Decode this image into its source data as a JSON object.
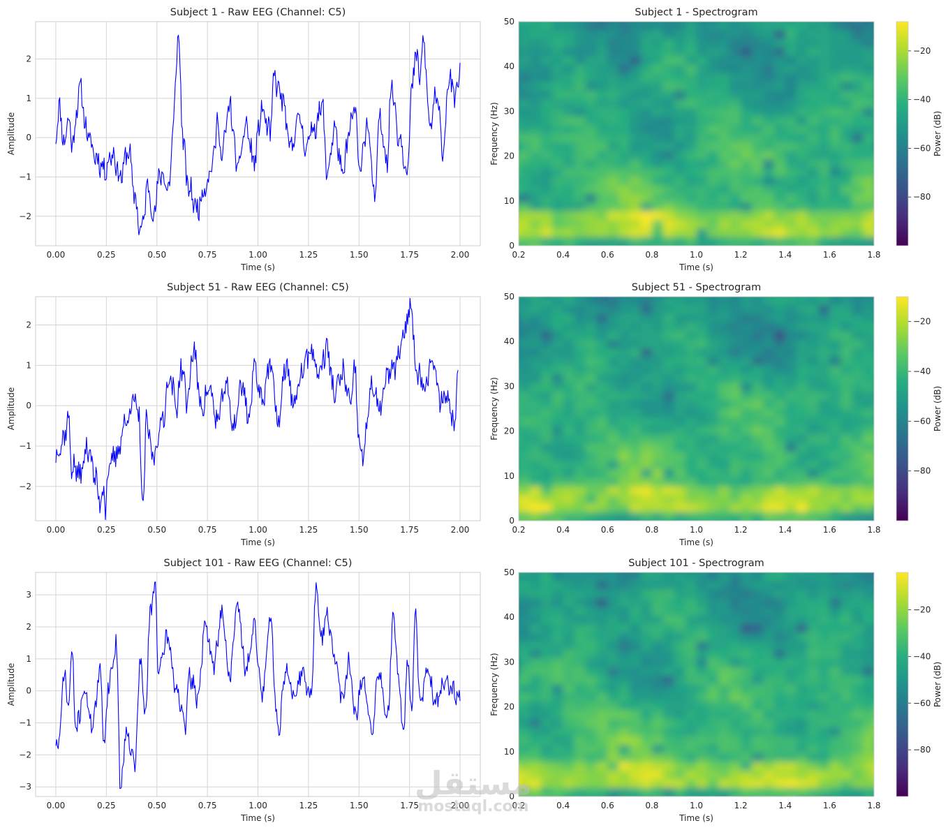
{
  "chart_data": [
    {
      "type": "line",
      "title": "Subject 1 - Raw EEG (Channel: C5)",
      "xlabel": "Time (s)",
      "ylabel": "Amplitude",
      "xlim": [
        -0.1,
        2.1
      ],
      "ylim": [
        -2.75,
        2.95
      ],
      "xticks": [
        0,
        0.25,
        0.5,
        0.75,
        1.0,
        1.25,
        1.5,
        1.75,
        2.0
      ],
      "xtick_labels": [
        "0.00",
        "0.25",
        "0.50",
        "0.75",
        "1.00",
        "1.25",
        "1.50",
        "1.75",
        "2.00"
      ],
      "yticks": [
        -2,
        -1,
        0,
        1,
        2
      ],
      "ytick_labels": [
        "−2",
        "−1",
        "0",
        "1",
        "2"
      ],
      "color": "#0000ff",
      "grid": true,
      "anchors": [
        [
          0.0,
          0.1
        ],
        [
          0.02,
          0.8
        ],
        [
          0.04,
          -0.2
        ],
        [
          0.06,
          0.5
        ],
        [
          0.08,
          -0.1
        ],
        [
          0.12,
          1.2
        ],
        [
          0.16,
          0.0
        ],
        [
          0.2,
          -0.5
        ],
        [
          0.24,
          -0.8
        ],
        [
          0.28,
          -0.4
        ],
        [
          0.32,
          -1.0
        ],
        [
          0.36,
          -0.3
        ],
        [
          0.39,
          -1.5
        ],
        [
          0.42,
          -2.4
        ],
        [
          0.46,
          -1.2
        ],
        [
          0.48,
          -2.0
        ],
        [
          0.52,
          -0.9
        ],
        [
          0.56,
          -1.3
        ],
        [
          0.58,
          0.2
        ],
        [
          0.605,
          2.6
        ],
        [
          0.63,
          0.0
        ],
        [
          0.65,
          -1.2
        ],
        [
          0.7,
          -1.8
        ],
        [
          0.74,
          -1.2
        ],
        [
          0.78,
          -0.6
        ],
        [
          0.8,
          0.5
        ],
        [
          0.82,
          -0.5
        ],
        [
          0.86,
          0.8
        ],
        [
          0.9,
          -0.8
        ],
        [
          0.94,
          0.3
        ],
        [
          0.98,
          -0.6
        ],
        [
          1.02,
          0.7
        ],
        [
          1.06,
          0.1
        ],
        [
          1.08,
          1.5
        ],
        [
          1.12,
          1.0
        ],
        [
          1.16,
          -0.3
        ],
        [
          1.2,
          0.5
        ],
        [
          1.24,
          -0.2
        ],
        [
          1.28,
          0.3
        ],
        [
          1.32,
          0.8
        ],
        [
          1.34,
          -0.9
        ],
        [
          1.38,
          0.2
        ],
        [
          1.42,
          -1.0
        ],
        [
          1.45,
          0.1
        ],
        [
          1.48,
          0.8
        ],
        [
          1.5,
          -0.8
        ],
        [
          1.54,
          0.3
        ],
        [
          1.58,
          -1.6
        ],
        [
          1.6,
          0.5
        ],
        [
          1.64,
          -0.5
        ],
        [
          1.66,
          1.3
        ],
        [
          1.7,
          0.0
        ],
        [
          1.74,
          -0.8
        ],
        [
          1.76,
          1.1
        ],
        [
          1.78,
          2.1
        ],
        [
          1.8,
          1.6
        ],
        [
          1.82,
          2.4
        ],
        [
          1.85,
          0.3
        ],
        [
          1.88,
          1.0
        ],
        [
          1.92,
          -0.3
        ],
        [
          1.94,
          1.5
        ],
        [
          1.98,
          1.0
        ],
        [
          2.0,
          1.9
        ]
      ],
      "seed": 11
    },
    {
      "type": "heatmap",
      "title": "Subject 1 - Spectrogram",
      "xlabel": "Time (s)",
      "ylabel": "Frequency (Hz)",
      "xlim": [
        0.2,
        1.8
      ],
      "ylim": [
        0,
        50
      ],
      "xticks": [
        0.2,
        0.4,
        0.6,
        0.8,
        1.0,
        1.2,
        1.4,
        1.6,
        1.8
      ],
      "xtick_labels": [
        "0.2",
        "0.4",
        "0.6",
        "0.8",
        "1.0",
        "1.2",
        "1.4",
        "1.6",
        "1.8"
      ],
      "yticks": [
        0,
        10,
        20,
        30,
        40,
        50
      ],
      "ytick_labels": [
        "0",
        "10",
        "20",
        "30",
        "40",
        "50"
      ],
      "colorbar_label": "Power (dB)",
      "colorbar_range": [
        -100,
        -8
      ],
      "colorbar_ticks": [
        -20,
        -40,
        -60,
        -80
      ],
      "colorbar_tick_labels": [
        "−20",
        "−40",
        "−60",
        "−80"
      ],
      "colormap": "viridis",
      "seed": 21
    },
    {
      "type": "line",
      "title": "Subject 51 - Raw EEG (Channel: C5)",
      "xlabel": "Time (s)",
      "ylabel": "Amplitude",
      "xlim": [
        -0.1,
        2.1
      ],
      "ylim": [
        -2.85,
        2.7
      ],
      "xticks": [
        0,
        0.25,
        0.5,
        0.75,
        1.0,
        1.25,
        1.5,
        1.75,
        2.0
      ],
      "xtick_labels": [
        "0.00",
        "0.25",
        "0.50",
        "0.75",
        "1.00",
        "1.25",
        "1.50",
        "1.75",
        "2.00"
      ],
      "yticks": [
        -2,
        -1,
        0,
        1,
        2
      ],
      "ytick_labels": [
        "−2",
        "−1",
        "0",
        "1",
        "2"
      ],
      "color": "#0000ff",
      "grid": true,
      "anchors": [
        [
          0.0,
          -1.2
        ],
        [
          0.02,
          -1.0
        ],
        [
          0.04,
          -0.8
        ],
        [
          0.06,
          -0.3
        ],
        [
          0.08,
          -1.5
        ],
        [
          0.12,
          -1.7
        ],
        [
          0.16,
          -1.0
        ],
        [
          0.2,
          -1.9
        ],
        [
          0.22,
          -2.4
        ],
        [
          0.24,
          -1.9
        ],
        [
          0.245,
          -2.6
        ],
        [
          0.26,
          -1.6
        ],
        [
          0.3,
          -1.2
        ],
        [
          0.34,
          -0.5
        ],
        [
          0.38,
          0.1
        ],
        [
          0.41,
          -0.2
        ],
        [
          0.43,
          -2.5
        ],
        [
          0.45,
          -0.4
        ],
        [
          0.48,
          -1.3
        ],
        [
          0.5,
          -0.9
        ],
        [
          0.53,
          -0.3
        ],
        [
          0.56,
          0.7
        ],
        [
          0.6,
          0.0
        ],
        [
          0.62,
          1.0
        ],
        [
          0.65,
          0.1
        ],
        [
          0.68,
          1.4
        ],
        [
          0.72,
          0.0
        ],
        [
          0.76,
          0.4
        ],
        [
          0.8,
          -0.4
        ],
        [
          0.84,
          0.5
        ],
        [
          0.88,
          -0.5
        ],
        [
          0.92,
          0.5
        ],
        [
          0.96,
          -0.3
        ],
        [
          0.98,
          1.0
        ],
        [
          1.02,
          0.2
        ],
        [
          1.06,
          1.0
        ],
        [
          1.1,
          -0.4
        ],
        [
          1.14,
          1.0
        ],
        [
          1.18,
          0.0
        ],
        [
          1.22,
          0.9
        ],
        [
          1.26,
          1.4
        ],
        [
          1.3,
          0.8
        ],
        [
          1.34,
          1.4
        ],
        [
          1.38,
          0.3
        ],
        [
          1.42,
          0.8
        ],
        [
          1.46,
          0.0
        ],
        [
          1.48,
          0.9
        ],
        [
          1.5,
          -0.9
        ],
        [
          1.52,
          -1.3
        ],
        [
          1.56,
          0.5
        ],
        [
          1.6,
          -0.1
        ],
        [
          1.64,
          0.7
        ],
        [
          1.68,
          1.0
        ],
        [
          1.72,
          1.6
        ],
        [
          1.74,
          2.3
        ],
        [
          1.76,
          2.4
        ],
        [
          1.78,
          1.0
        ],
        [
          1.82,
          0.5
        ],
        [
          1.86,
          1.1
        ],
        [
          1.9,
          0.2
        ],
        [
          1.94,
          0.2
        ],
        [
          1.97,
          -0.5
        ],
        [
          1.99,
          1.0
        ]
      ],
      "seed": 37
    },
    {
      "type": "heatmap",
      "title": "Subject 51 - Spectrogram",
      "xlabel": "Time (s)",
      "ylabel": "Frequency (Hz)",
      "xlim": [
        0.2,
        1.8
      ],
      "ylim": [
        0,
        50
      ],
      "xticks": [
        0.2,
        0.4,
        0.6,
        0.8,
        1.0,
        1.2,
        1.4,
        1.6,
        1.8
      ],
      "xtick_labels": [
        "0.2",
        "0.4",
        "0.6",
        "0.8",
        "1.0",
        "1.2",
        "1.4",
        "1.6",
        "1.8"
      ],
      "yticks": [
        0,
        10,
        20,
        30,
        40,
        50
      ],
      "ytick_labels": [
        "0",
        "10",
        "20",
        "30",
        "40",
        "50"
      ],
      "colorbar_label": "Power (dB)",
      "colorbar_range": [
        -100,
        -10
      ],
      "colorbar_ticks": [
        -20,
        -40,
        -60,
        -80
      ],
      "colorbar_tick_labels": [
        "−20",
        "−40",
        "−60",
        "−80"
      ],
      "colormap": "viridis",
      "seed": 53
    },
    {
      "type": "line",
      "title": "Subject 101 - Raw EEG (Channel: C5)",
      "xlabel": "Time (s)",
      "ylabel": "Amplitude",
      "xlim": [
        -0.1,
        2.1
      ],
      "ylim": [
        -3.3,
        3.7
      ],
      "xticks": [
        0,
        0.25,
        0.5,
        0.75,
        1.0,
        1.25,
        1.5,
        1.75,
        2.0
      ],
      "xtick_labels": [
        "0.00",
        "0.25",
        "0.50",
        "0.75",
        "1.00",
        "1.25",
        "1.50",
        "1.75",
        "2.00"
      ],
      "yticks": [
        -3,
        -2,
        -1,
        0,
        1,
        2,
        3
      ],
      "ytick_labels": [
        "−3",
        "−2",
        "−1",
        "0",
        "1",
        "2",
        "3"
      ],
      "color": "#0000ff",
      "grid": true,
      "anchors": [
        [
          0.0,
          -1.7
        ],
        [
          0.02,
          -1.5
        ],
        [
          0.04,
          0.7
        ],
        [
          0.06,
          -0.5
        ],
        [
          0.08,
          1.1
        ],
        [
          0.1,
          -1.2
        ],
        [
          0.14,
          0.0
        ],
        [
          0.18,
          -1.0
        ],
        [
          0.22,
          0.5
        ],
        [
          0.24,
          -1.6
        ],
        [
          0.26,
          0.2
        ],
        [
          0.3,
          1.4
        ],
        [
          0.32,
          -3.0
        ],
        [
          0.35,
          -1.2
        ],
        [
          0.39,
          -2.3
        ],
        [
          0.42,
          1.0
        ],
        [
          0.44,
          -0.8
        ],
        [
          0.47,
          2.5
        ],
        [
          0.49,
          3.4
        ],
        [
          0.51,
          0.5
        ],
        [
          0.55,
          1.7
        ],
        [
          0.6,
          0.0
        ],
        [
          0.64,
          -1.2
        ],
        [
          0.66,
          0.5
        ],
        [
          0.7,
          -0.2
        ],
        [
          0.74,
          2.0
        ],
        [
          0.78,
          0.8
        ],
        [
          0.82,
          2.4
        ],
        [
          0.86,
          0.5
        ],
        [
          0.9,
          2.7
        ],
        [
          0.94,
          0.6
        ],
        [
          0.98,
          2.0
        ],
        [
          1.02,
          -0.1
        ],
        [
          1.06,
          2.3
        ],
        [
          1.1,
          -1.2
        ],
        [
          1.14,
          0.7
        ],
        [
          1.18,
          -0.3
        ],
        [
          1.22,
          0.6
        ],
        [
          1.26,
          -0.2
        ],
        [
          1.29,
          3.3
        ],
        [
          1.31,
          1.5
        ],
        [
          1.34,
          2.5
        ],
        [
          1.38,
          1.0
        ],
        [
          1.42,
          -0.3
        ],
        [
          1.45,
          0.9
        ],
        [
          1.48,
          -0.8
        ],
        [
          1.52,
          0.3
        ],
        [
          1.56,
          -1.2
        ],
        [
          1.6,
          0.5
        ],
        [
          1.64,
          -0.8
        ],
        [
          1.67,
          2.2
        ],
        [
          1.7,
          0.2
        ],
        [
          1.72,
          -1.4
        ],
        [
          1.74,
          1.0
        ],
        [
          1.76,
          -0.4
        ],
        [
          1.78,
          2.3
        ],
        [
          1.8,
          -0.2
        ],
        [
          1.84,
          0.5
        ],
        [
          1.88,
          -0.4
        ],
        [
          1.92,
          0.2
        ],
        [
          1.96,
          0.0
        ],
        [
          2.0,
          -0.1
        ]
      ],
      "seed": 71
    },
    {
      "type": "heatmap",
      "title": "Subject 101 - Spectrogram",
      "xlabel": "Time (s)",
      "ylabel": "Frequency (Hz)",
      "xlim": [
        0.2,
        1.8
      ],
      "ylim": [
        0,
        50
      ],
      "xticks": [
        0.2,
        0.4,
        0.6,
        0.8,
        1.0,
        1.2,
        1.4,
        1.6,
        1.8
      ],
      "xtick_labels": [
        "0.2",
        "0.4",
        "0.6",
        "0.8",
        "1.0",
        "1.2",
        "1.4",
        "1.6",
        "1.8"
      ],
      "yticks": [
        0,
        10,
        20,
        30,
        40,
        50
      ],
      "ytick_labels": [
        "0",
        "10",
        "20",
        "30",
        "40",
        "50"
      ],
      "colorbar_label": "Power (dB)",
      "colorbar_range": [
        -100,
        -4
      ],
      "colorbar_ticks": [
        -20,
        -40,
        -60,
        -80
      ],
      "colorbar_tick_labels": [
        "−20",
        "−40",
        "−60",
        "−80"
      ],
      "colormap": "viridis",
      "seed": 97
    }
  ],
  "watermark": {
    "arabic": "مستقل",
    "latin": "mostaql.com"
  }
}
